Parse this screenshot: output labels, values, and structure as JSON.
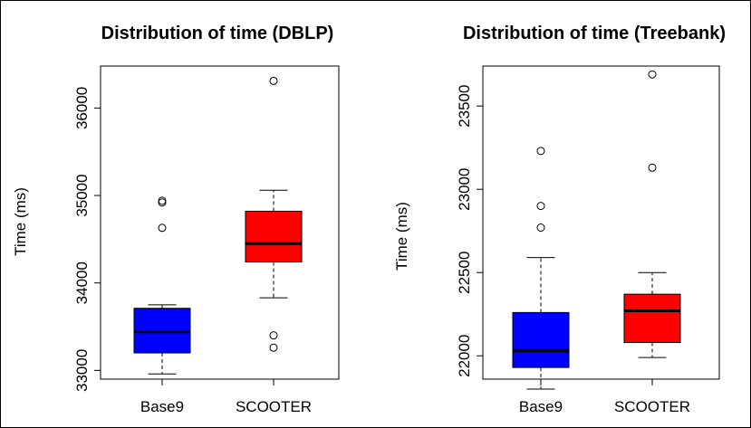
{
  "chart_data": [
    {
      "type": "box",
      "title": "Distribution of time (DBLP)",
      "xlabel": "",
      "ylabel": "Time (ms)",
      "categories": [
        "Base9",
        "SCOOTER"
      ],
      "ylim": [
        32900,
        36480
      ],
      "yticks": [
        33000,
        34000,
        35000,
        36000
      ],
      "boxes": [
        {
          "name": "Base9",
          "color": "#0000FF",
          "whisker_low": 32960,
          "q1": 33200,
          "median": 33440,
          "q3": 33710,
          "whisker_high": 33750,
          "outliers": [
            34630,
            34920,
            34940
          ]
        },
        {
          "name": "SCOOTER",
          "color": "#FF0000",
          "whisker_low": 33830,
          "q1": 34240,
          "median": 34450,
          "q3": 34820,
          "whisker_high": 35060,
          "outliers": [
            33260,
            33400,
            36310
          ]
        }
      ]
    },
    {
      "type": "box",
      "title": "Distribution of time (Treebank)",
      "xlabel": "",
      "ylabel": "Time (ms)",
      "categories": [
        "Base9",
        "SCOOTER"
      ],
      "ylim": [
        21860,
        23740
      ],
      "yticks": [
        22000,
        22500,
        23000,
        23500
      ],
      "boxes": [
        {
          "name": "Base9",
          "color": "#0000FF",
          "whisker_low": 21800,
          "q1": 21930,
          "median": 22030,
          "q3": 22260,
          "whisker_high": 22590,
          "outliers": [
            22770,
            22900,
            23230
          ]
        },
        {
          "name": "SCOOTER",
          "color": "#FF0000",
          "whisker_low": 21990,
          "q1": 22080,
          "median": 22270,
          "q3": 22370,
          "whisker_high": 22500,
          "outliers": [
            23130,
            23690
          ]
        }
      ]
    }
  ]
}
